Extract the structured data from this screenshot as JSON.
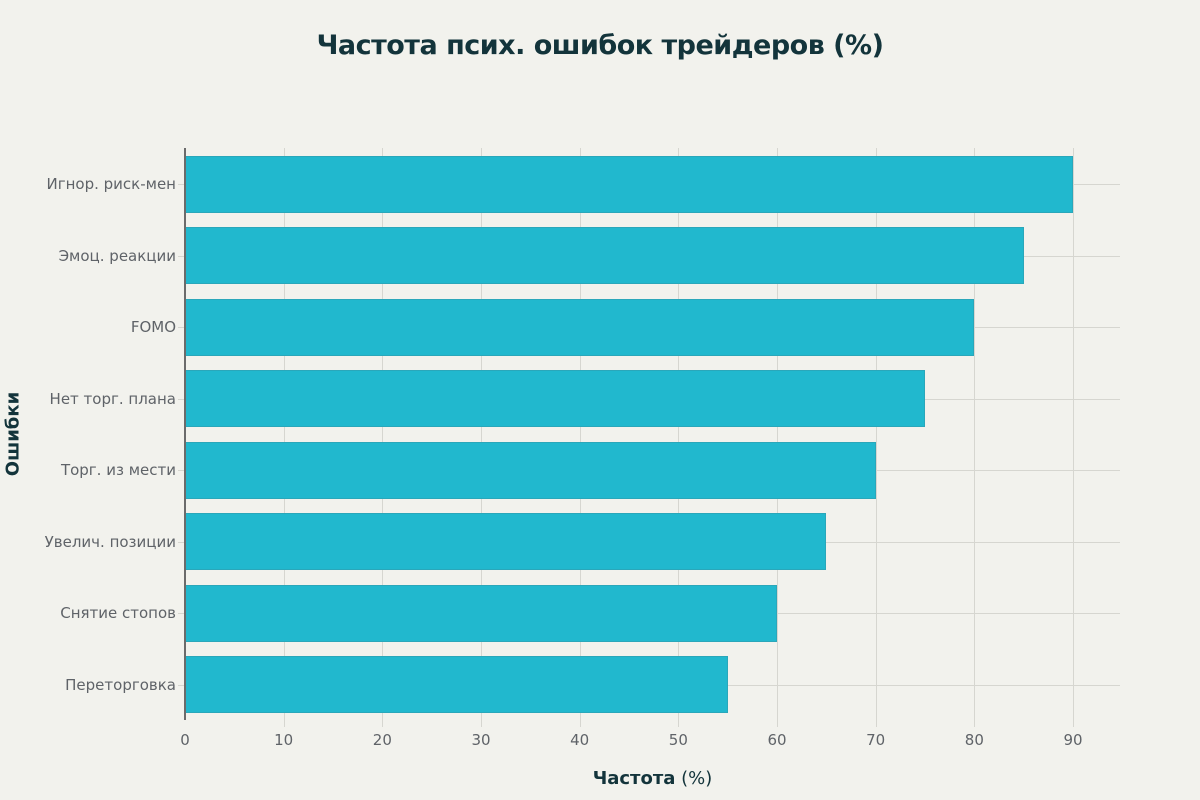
{
  "title": "Частота псих. ошибок трейдеров (%)",
  "xaxis": {
    "label_bold": "Частота",
    "label_rest": " (%)",
    "ticks": [
      "0",
      "10",
      "20",
      "30",
      "40",
      "50",
      "60",
      "70",
      "80",
      "90"
    ]
  },
  "yaxis": {
    "label": "Ошибки"
  },
  "colors": {
    "bar": "#21b8ce",
    "background": "#f2f2ed",
    "title": "#13343b",
    "tick_text": "#5f6368",
    "grid": "#d6d6d0"
  },
  "chart_data": {
    "type": "bar",
    "orientation": "horizontal",
    "title": "Частота псих. ошибок трейдеров (%)",
    "xlabel": "Частота (%)",
    "ylabel": "Ошибки",
    "categories": [
      "Игнор. риск-мен",
      "Эмоц. реакции",
      "FOMO",
      "Нет торг. плана",
      "Торг. из мести",
      "Увелич. позиции",
      "Снятие стопов",
      "Переторговка"
    ],
    "values": [
      90,
      85,
      80,
      75,
      70,
      65,
      60,
      55
    ],
    "xlim": [
      0,
      95
    ],
    "xticks": [
      0,
      10,
      20,
      30,
      40,
      50,
      60,
      70,
      80,
      90
    ],
    "grid": true,
    "legend": false
  }
}
